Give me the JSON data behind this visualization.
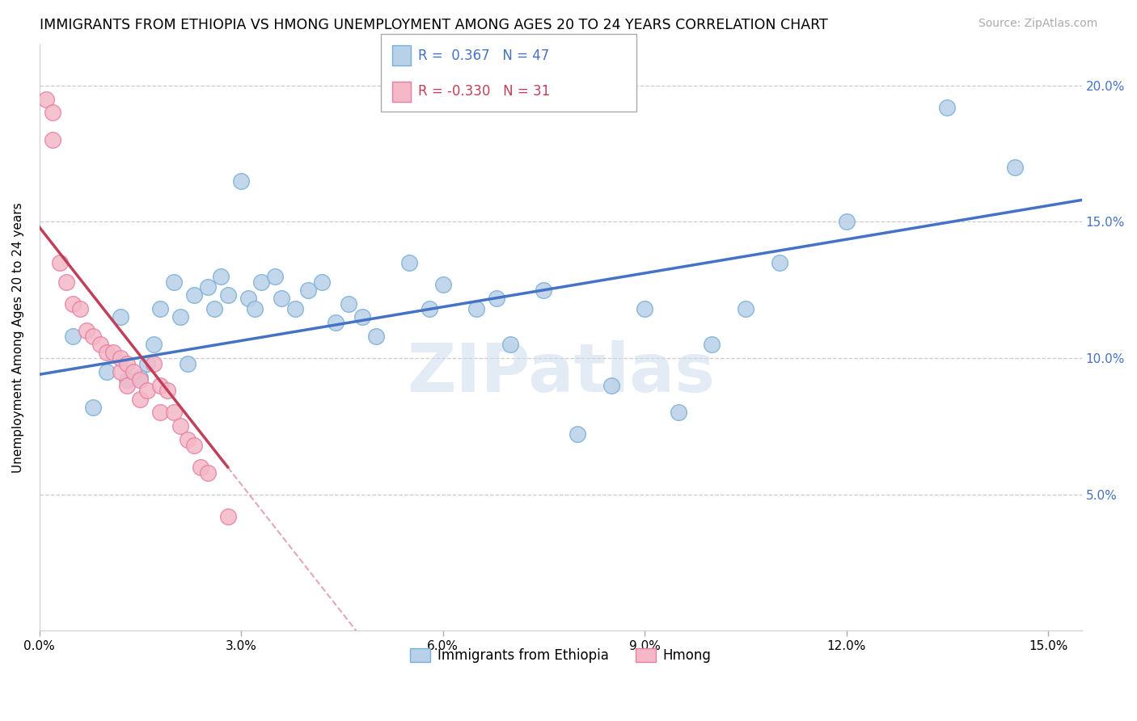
{
  "title": "IMMIGRANTS FROM ETHIOPIA VS HMONG UNEMPLOYMENT AMONG AGES 20 TO 24 YEARS CORRELATION CHART",
  "source": "Source: ZipAtlas.com",
  "ylabel": "Unemployment Among Ages 20 to 24 years",
  "xlim": [
    0.0,
    0.155
  ],
  "ylim": [
    0.0,
    0.215
  ],
  "xticks": [
    0.0,
    0.03,
    0.06,
    0.09,
    0.12,
    0.15
  ],
  "xticklabels": [
    "0.0%",
    "3.0%",
    "6.0%",
    "9.0%",
    "12.0%",
    "15.0%"
  ],
  "yticks": [
    0.0,
    0.05,
    0.1,
    0.15,
    0.2
  ],
  "yticklabels": [
    "",
    "5.0%",
    "10.0%",
    "15.0%",
    "20.0%"
  ],
  "legend_r1_val": "0.367",
  "legend_n1_val": "47",
  "legend_r2_val": "-0.330",
  "legend_n2_val": "31",
  "ethiopia_color": "#b8d0e8",
  "ethiopia_edge": "#7aafd4",
  "hmong_color": "#f4b8c8",
  "hmong_edge": "#e87fa0",
  "trend_ethiopia_color": "#4472c4",
  "trend_hmong_color": "#c0405a",
  "watermark": "ZIPatlas",
  "ethiopia_x": [
    0.005,
    0.008,
    0.01,
    0.012,
    0.013,
    0.015,
    0.016,
    0.017,
    0.018,
    0.02,
    0.021,
    0.022,
    0.023,
    0.025,
    0.026,
    0.027,
    0.028,
    0.03,
    0.031,
    0.032,
    0.033,
    0.035,
    0.036,
    0.038,
    0.04,
    0.042,
    0.044,
    0.046,
    0.048,
    0.05,
    0.055,
    0.058,
    0.06,
    0.065,
    0.068,
    0.07,
    0.075,
    0.08,
    0.085,
    0.09,
    0.095,
    0.1,
    0.105,
    0.11,
    0.12,
    0.135,
    0.145
  ],
  "ethiopia_y": [
    0.108,
    0.082,
    0.095,
    0.115,
    0.092,
    0.093,
    0.098,
    0.105,
    0.118,
    0.128,
    0.115,
    0.098,
    0.123,
    0.126,
    0.118,
    0.13,
    0.123,
    0.165,
    0.122,
    0.118,
    0.128,
    0.13,
    0.122,
    0.118,
    0.125,
    0.128,
    0.113,
    0.12,
    0.115,
    0.108,
    0.135,
    0.118,
    0.127,
    0.118,
    0.122,
    0.105,
    0.125,
    0.072,
    0.09,
    0.118,
    0.08,
    0.105,
    0.118,
    0.135,
    0.15,
    0.192,
    0.17
  ],
  "hmong_x": [
    0.001,
    0.002,
    0.002,
    0.003,
    0.004,
    0.005,
    0.006,
    0.007,
    0.008,
    0.009,
    0.01,
    0.011,
    0.012,
    0.012,
    0.013,
    0.013,
    0.014,
    0.015,
    0.015,
    0.016,
    0.017,
    0.018,
    0.018,
    0.019,
    0.02,
    0.021,
    0.022,
    0.023,
    0.024,
    0.025,
    0.028
  ],
  "hmong_y": [
    0.195,
    0.19,
    0.18,
    0.135,
    0.128,
    0.12,
    0.118,
    0.11,
    0.108,
    0.105,
    0.102,
    0.102,
    0.095,
    0.1,
    0.098,
    0.09,
    0.095,
    0.092,
    0.085,
    0.088,
    0.098,
    0.09,
    0.08,
    0.088,
    0.08,
    0.075,
    0.07,
    0.068,
    0.06,
    0.058,
    0.042
  ],
  "trend_eth_x0": 0.0,
  "trend_eth_y0": 0.094,
  "trend_eth_x1": 0.155,
  "trend_eth_y1": 0.158,
  "trend_hmong_x0": 0.0,
  "trend_hmong_y0": 0.148,
  "trend_hmong_x1": 0.028,
  "trend_hmong_y1": 0.06
}
